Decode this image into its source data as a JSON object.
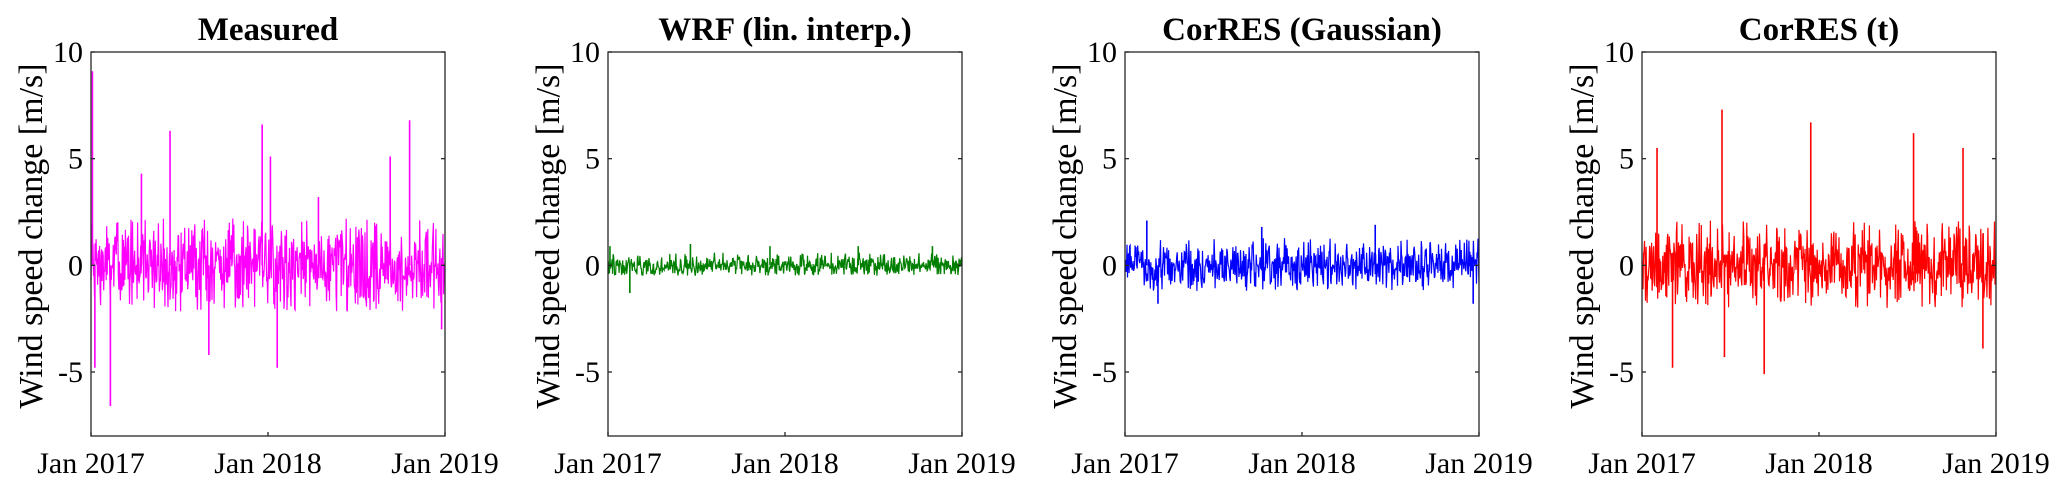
{
  "chart_data": [
    {
      "type": "line",
      "title": "Measured",
      "ylabel": "Wind speed change [m/s]",
      "xlabel": "",
      "x_range": [
        "2017-01-01",
        "2019-01-01"
      ],
      "ylim": [
        -8,
        10
      ],
      "y_ticks": [
        "-5",
        "0",
        "5",
        "10"
      ],
      "x_ticks": [
        "Jan 2017",
        "Jan 2018",
        "Jan 2019"
      ],
      "grid": false,
      "color": "#ff00ff",
      "spikes": [
        {
          "x": "2017-01-04",
          "y": 9.1
        },
        {
          "x": "2017-01-09",
          "y": -4.8
        },
        {
          "x": "2017-02-10",
          "y": -6.6
        },
        {
          "x": "2017-04-15",
          "y": 4.3
        },
        {
          "x": "2017-06-13",
          "y": 6.3
        },
        {
          "x": "2017-09-01",
          "y": -4.2
        },
        {
          "x": "2017-12-20",
          "y": 6.6
        },
        {
          "x": "2018-01-06",
          "y": 5.1
        },
        {
          "x": "2018-01-20",
          "y": -4.8
        },
        {
          "x": "2018-04-15",
          "y": 3.2
        },
        {
          "x": "2018-09-10",
          "y": 5.1
        },
        {
          "x": "2018-10-20",
          "y": 6.8
        },
        {
          "x": "2018-12-25",
          "y": -3.0
        }
      ],
      "typical_envelope": [
        -2.2,
        2.2
      ]
    },
    {
      "type": "line",
      "title": "WRF (lin. interp.)",
      "ylabel": "Wind speed change [m/s]",
      "xlabel": "",
      "x_range": [
        "2017-01-01",
        "2019-01-01"
      ],
      "ylim": [
        -8,
        10
      ],
      "y_ticks": [
        "-5",
        "0",
        "5",
        "10"
      ],
      "x_ticks": [
        "Jan 2017",
        "Jan 2018",
        "Jan 2019"
      ],
      "grid": false,
      "color": "#007f00",
      "spikes": [
        {
          "x": "2017-01-05",
          "y": 0.9
        },
        {
          "x": "2017-02-15",
          "y": -1.3
        },
        {
          "x": "2017-06-20",
          "y": 1.0
        },
        {
          "x": "2017-12-01",
          "y": 0.9
        },
        {
          "x": "2018-06-01",
          "y": 0.9
        },
        {
          "x": "2018-11-01",
          "y": 0.9
        }
      ],
      "typical_envelope": [
        -0.5,
        0.6
      ]
    },
    {
      "type": "line",
      "title": "CorRES (Gaussian)",
      "ylabel": "Wind speed change [m/s]",
      "xlabel": "",
      "x_range": [
        "2017-01-01",
        "2019-01-01"
      ],
      "ylim": [
        -8,
        10
      ],
      "y_ticks": [
        "-5",
        "0",
        "5",
        "10"
      ],
      "x_ticks": [
        "Jan 2017",
        "Jan 2018",
        "Jan 2019"
      ],
      "grid": false,
      "color": "#0000ff",
      "spikes": [
        {
          "x": "2017-02-15",
          "y": 2.1
        },
        {
          "x": "2017-03-10",
          "y": -1.8
        },
        {
          "x": "2017-10-10",
          "y": 1.8
        },
        {
          "x": "2018-06-01",
          "y": 1.9
        },
        {
          "x": "2018-12-20",
          "y": -1.8
        }
      ],
      "typical_envelope": [
        -1.2,
        1.3
      ]
    },
    {
      "type": "line",
      "title": "CorRES (t)",
      "ylabel": "Wind speed change [m/s]",
      "xlabel": "",
      "x_range": [
        "2017-01-01",
        "2019-01-01"
      ],
      "ylim": [
        -8,
        10
      ],
      "y_ticks": [
        "-5",
        "0",
        "5",
        "10"
      ],
      "x_ticks": [
        "Jan 2017",
        "Jan 2018",
        "Jan 2019"
      ],
      "grid": false,
      "color": "#ff0000",
      "spikes": [
        {
          "x": "2017-02-01",
          "y": 5.5
        },
        {
          "x": "2017-03-05",
          "y": -4.8
        },
        {
          "x": "2017-06-15",
          "y": 7.3
        },
        {
          "x": "2017-06-20",
          "y": -4.3
        },
        {
          "x": "2017-09-10",
          "y": -5.1
        },
        {
          "x": "2017-12-15",
          "y": 6.7
        },
        {
          "x": "2018-07-15",
          "y": 6.2
        },
        {
          "x": "2018-10-25",
          "y": 5.5
        },
        {
          "x": "2018-12-05",
          "y": -3.9
        }
      ],
      "typical_envelope": [
        -2.0,
        2.1
      ]
    }
  ]
}
